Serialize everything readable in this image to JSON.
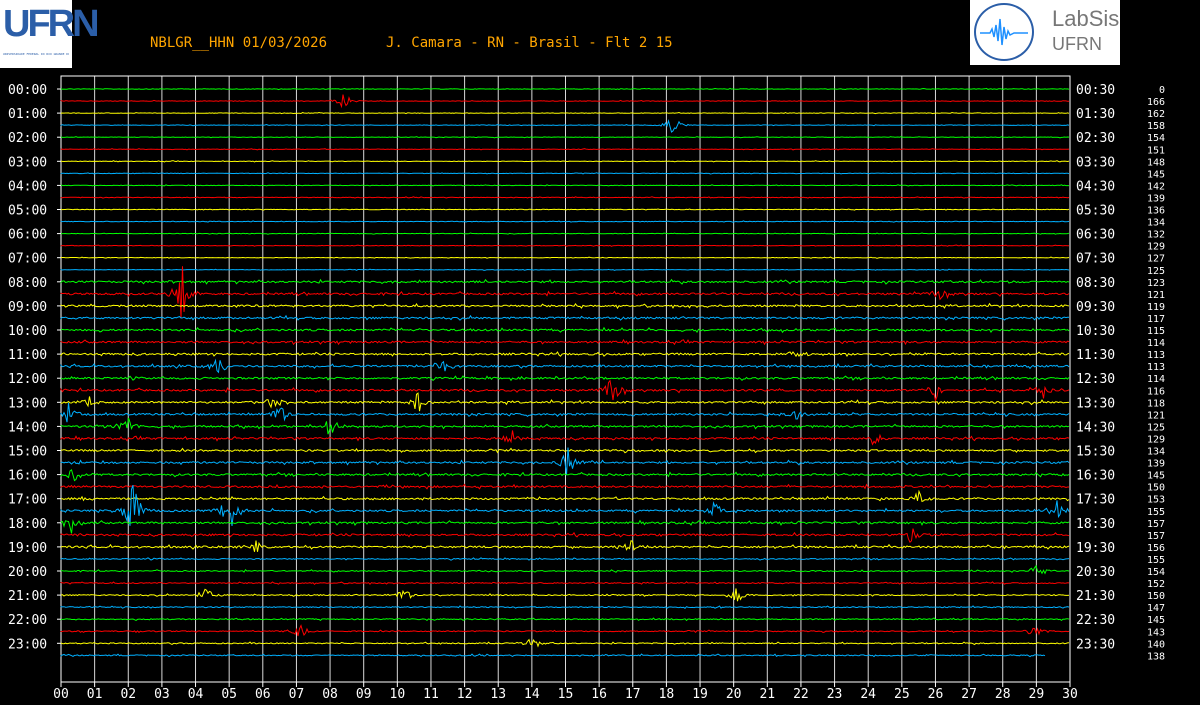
{
  "header": {
    "title": "NBLGR__HHN 01/03/2026       J. Camara - RN - Brasil - Flt 2 15"
  },
  "logos": {
    "left_text": "UFRN",
    "left_subtext": "UNIVERSIDADE FEDERAL DO RIO GRANDE DO NORTE",
    "right_name": "LabSis",
    "right_sub": "UFRN"
  },
  "colors": {
    "background": "#000000",
    "grid": "#ffffff",
    "trace_cycle": [
      "#00ff00",
      "#ff0000",
      "#ffff00",
      "#00b0ff"
    ],
    "title": "#ffa500",
    "logo_blue": "#2b5ea8"
  },
  "chart_data": {
    "type": "helicorder",
    "x_unit": "minutes",
    "xlim": [
      0,
      30
    ],
    "x_ticks": [
      "00",
      "01",
      "02",
      "03",
      "04",
      "05",
      "06",
      "07",
      "08",
      "09",
      "10",
      "11",
      "12",
      "13",
      "14",
      "15",
      "16",
      "17",
      "18",
      "19",
      "20",
      "21",
      "22",
      "23",
      "24",
      "25",
      "26",
      "27",
      "28",
      "29",
      "30"
    ],
    "left_time_labels": [
      "00:00",
      "01:00",
      "02:00",
      "03:00",
      "04:00",
      "05:00",
      "06:00",
      "07:00",
      "08:00",
      "09:00",
      "10:00",
      "11:00",
      "12:00",
      "13:00",
      "14:00",
      "15:00",
      "16:00",
      "17:00",
      "18:00",
      "19:00",
      "20:00",
      "21:00",
      "22:00",
      "23:00"
    ],
    "right_time_labels": [
      "00:30",
      "01:30",
      "02:30",
      "03:30",
      "04:30",
      "05:30",
      "06:30",
      "07:30",
      "08:30",
      "09:30",
      "10:30",
      "11:30",
      "12:30",
      "13:30",
      "14:30",
      "15:30",
      "16:30",
      "17:30",
      "18:30",
      "19:30",
      "20:30",
      "21:30",
      "22:30",
      "23:30"
    ],
    "trace_count": 48,
    "scale_values": [
      0,
      166,
      162,
      158,
      154,
      151,
      148,
      145,
      142,
      139,
      136,
      134,
      132,
      129,
      127,
      125,
      123,
      121,
      119,
      117,
      115,
      114,
      113,
      113,
      114,
      116,
      118,
      121,
      125,
      129,
      134,
      139,
      145,
      150,
      153,
      155,
      157,
      157,
      156,
      155,
      154,
      152,
      150,
      147,
      145,
      143,
      140,
      138
    ],
    "events": [
      {
        "trace": 17,
        "minute": 3.6,
        "amp": 3.5
      },
      {
        "trace": 17,
        "minute": 26.1,
        "amp": 1.0
      },
      {
        "trace": 22,
        "minute": 21.9,
        "amp": 1.2
      },
      {
        "trace": 23,
        "minute": 4.7,
        "amp": 1.3
      },
      {
        "trace": 23,
        "minute": 11.3,
        "amp": 1.5
      },
      {
        "trace": 25,
        "minute": 16.4,
        "amp": 2.0
      },
      {
        "trace": 25,
        "minute": 26.0,
        "amp": 1.1
      },
      {
        "trace": 25,
        "minute": 29.2,
        "amp": 1.0
      },
      {
        "trace": 26,
        "minute": 0.9,
        "amp": 1.0
      },
      {
        "trace": 26,
        "minute": 6.3,
        "amp": 1.0
      },
      {
        "trace": 26,
        "minute": 10.6,
        "amp": 1.4
      },
      {
        "trace": 27,
        "minute": 0.2,
        "amp": 1.6
      },
      {
        "trace": 27,
        "minute": 6.5,
        "amp": 1.5
      },
      {
        "trace": 27,
        "minute": 21.8,
        "amp": 1.1
      },
      {
        "trace": 28,
        "minute": 2.0,
        "amp": 1.3
      },
      {
        "trace": 28,
        "minute": 8.0,
        "amp": 1.3
      },
      {
        "trace": 29,
        "minute": 13.4,
        "amp": 1.0
      },
      {
        "trace": 29,
        "minute": 24.2,
        "amp": 1.0
      },
      {
        "trace": 31,
        "minute": 15.1,
        "amp": 2.5
      },
      {
        "trace": 32,
        "minute": 0.4,
        "amp": 1.0
      },
      {
        "trace": 34,
        "minute": 25.5,
        "amp": 1.0
      },
      {
        "trace": 35,
        "minute": 2.1,
        "amp": 4.0
      },
      {
        "trace": 35,
        "minute": 5.0,
        "amp": 3.2
      },
      {
        "trace": 35,
        "minute": 29.6,
        "amp": 1.8
      },
      {
        "trace": 35,
        "minute": 19.5,
        "amp": 1.5
      },
      {
        "trace": 36,
        "minute": 0.3,
        "amp": 1.2
      },
      {
        "trace": 37,
        "minute": 25.3,
        "amp": 1.3
      },
      {
        "trace": 38,
        "minute": 5.8,
        "amp": 1.0
      },
      {
        "trace": 38,
        "minute": 16.9,
        "amp": 1.0
      },
      {
        "trace": 40,
        "minute": 29.0,
        "amp": 1.0
      },
      {
        "trace": 42,
        "minute": 4.3,
        "amp": 1.0
      },
      {
        "trace": 42,
        "minute": 10.2,
        "amp": 1.0
      },
      {
        "trace": 42,
        "minute": 20.1,
        "amp": 1.0
      },
      {
        "trace": 45,
        "minute": 7.1,
        "amp": 1.0
      },
      {
        "trace": 45,
        "minute": 28.9,
        "amp": 1.0
      },
      {
        "trace": 1,
        "minute": 8.4,
        "amp": 1.0
      },
      {
        "trace": 3,
        "minute": 18.2,
        "amp": 1.2
      },
      {
        "trace": 46,
        "minute": 14.0,
        "amp": 0.7
      }
    ]
  }
}
